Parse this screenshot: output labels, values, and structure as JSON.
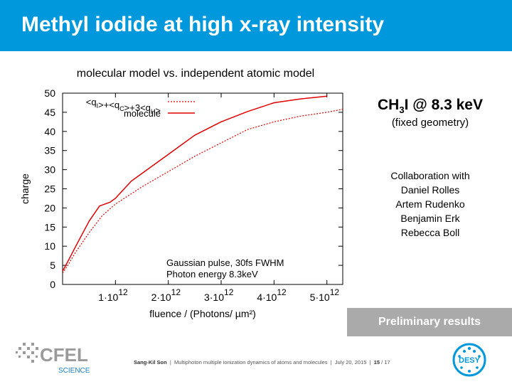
{
  "slide": {
    "title": "Methyl iodide at high x-ray intensity",
    "side_title_parts": [
      "CH",
      "3",
      "I @ 8.3 keV"
    ],
    "side_subtitle": "(fixed geometry)",
    "collaboration": [
      "Collaboration with",
      "Daniel Rolles",
      "Artem Rudenko",
      "Benjamin Erk",
      "Rebecca Boll"
    ],
    "preliminary": "Preliminary results",
    "footer": {
      "author": "Sang-Kil Son",
      "talk": "Multiphoton multiple ionization dynamics of atoms and molecules",
      "date": "July 20, 2015",
      "page": "15",
      "total": "17"
    },
    "logos": {
      "cfel": "CFEL",
      "cfel_sub": "SCIENCE",
      "desy": "DESY"
    }
  },
  "chart_data": {
    "type": "line",
    "title": "molecular model vs. independent atomic model",
    "xlabel": "fluence / (Photons/ µm²)",
    "ylabel": "charge",
    "xlim": [
      0,
      5300000000000.0
    ],
    "ylim": [
      0,
      50
    ],
    "xticks": [
      1000000000000.0,
      2000000000000.0,
      3000000000000.0,
      4000000000000.0,
      5000000000000.0
    ],
    "xtick_labels": [
      "1·10",
      "2·10",
      "3·10",
      "4·10",
      "5·10"
    ],
    "xtick_exponent": "12",
    "yticks": [
      0,
      5,
      10,
      15,
      20,
      25,
      30,
      35,
      40,
      45,
      50
    ],
    "legend_position": "top-left",
    "annotations": [
      "Gaussian pulse, 30fs FWHM",
      "Photon energy 8.3keV"
    ],
    "series": [
      {
        "name": "<qI>+<qC>+3<qH>",
        "style": "dotted",
        "color": "#e00000",
        "x": [
          0,
          100000000000.0,
          250000000000.0,
          500000000000.0,
          750000000000.0,
          1000000000000.0,
          1500000000000.0,
          2000000000000.0,
          2500000000000.0,
          3000000000000.0,
          3500000000000.0,
          4000000000000.0,
          4500000000000.0,
          5000000000000.0,
          5300000000000.0
        ],
        "y": [
          3,
          5,
          8.5,
          13.5,
          18,
          21,
          25.5,
          29.5,
          33.5,
          37,
          40.5,
          42.5,
          44,
          45,
          45.8
        ]
      },
      {
        "name": "molecule",
        "style": "solid",
        "color": "#e00000",
        "x": [
          0,
          100000000000.0,
          250000000000.0,
          500000000000.0,
          700000000000.0,
          900000000000.0,
          1000000000000.0,
          1300000000000.0,
          1500000000000.0,
          2000000000000.0,
          2500000000000.0,
          3000000000000.0,
          3500000000000.0,
          4000000000000.0,
          4500000000000.0,
          5000000000000.0
        ],
        "y": [
          3.5,
          6,
          10,
          16.5,
          20.5,
          21.5,
          22.5,
          27,
          29,
          34,
          39,
          42.5,
          45.2,
          47.5,
          48.5,
          49.2
        ]
      }
    ]
  }
}
